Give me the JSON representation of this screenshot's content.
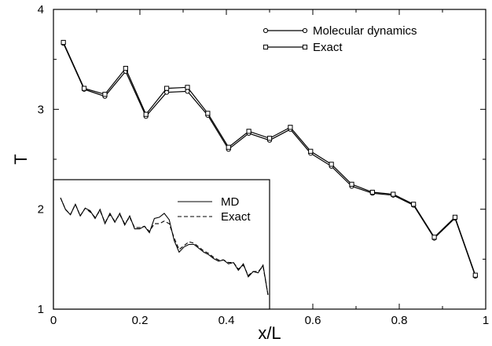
{
  "chart_data": [
    {
      "type": "line",
      "xlabel": "x/L",
      "ylabel": "T",
      "xlim": [
        0,
        1
      ],
      "ylim": [
        1,
        4
      ],
      "xticks": [
        "0",
        "0.2",
        "0.4",
        "0.6",
        "0.8",
        "1"
      ],
      "yticks": [
        "1",
        "2",
        "3",
        "4"
      ],
      "grid": false,
      "legend": "top-right",
      "series": [
        {
          "name": "Molecular dynamics",
          "marker": "circle",
          "x": [
            0.023,
            0.071,
            0.119,
            0.167,
            0.214,
            0.262,
            0.31,
            0.357,
            0.405,
            0.452,
            0.5,
            0.548,
            0.595,
            0.643,
            0.69,
            0.738,
            0.786,
            0.833,
            0.881,
            0.929,
            0.976
          ],
          "y": [
            3.66,
            3.2,
            3.13,
            3.38,
            2.93,
            3.17,
            3.18,
            2.94,
            2.6,
            2.76,
            2.69,
            2.8,
            2.56,
            2.43,
            2.23,
            2.16,
            2.14,
            2.04,
            1.71,
            1.91,
            1.33
          ]
        },
        {
          "name": "Exact",
          "marker": "square",
          "x": [
            0.023,
            0.071,
            0.119,
            0.167,
            0.214,
            0.262,
            0.31,
            0.357,
            0.405,
            0.452,
            0.5,
            0.548,
            0.595,
            0.643,
            0.69,
            0.738,
            0.786,
            0.833,
            0.881,
            0.929,
            0.976
          ],
          "y": [
            3.67,
            3.21,
            3.15,
            3.41,
            2.95,
            3.21,
            3.22,
            2.96,
            2.62,
            2.78,
            2.71,
            2.82,
            2.58,
            2.45,
            2.25,
            2.17,
            2.15,
            2.05,
            1.72,
            1.92,
            1.34
          ]
        }
      ]
    },
    {
      "type": "line",
      "legend": "top-right",
      "series": [
        {
          "name": "MD",
          "style": "solid",
          "values": [
            0.86,
            0.77,
            0.73,
            0.81,
            0.72,
            0.78,
            0.76,
            0.7,
            0.77,
            0.66,
            0.74,
            0.67,
            0.74,
            0.65,
            0.72,
            0.62,
            0.62,
            0.64,
            0.59,
            0.7,
            0.71,
            0.74,
            0.69,
            0.53,
            0.44,
            0.48,
            0.5,
            0.5,
            0.47,
            0.44,
            0.42,
            0.39,
            0.37,
            0.38,
            0.35,
            0.36,
            0.3,
            0.35,
            0.25,
            0.29,
            0.28,
            0.34,
            0.11
          ]
        },
        {
          "name": "Exact",
          "style": "dashed",
          "values": [
            0.86,
            0.77,
            0.73,
            0.81,
            0.72,
            0.78,
            0.75,
            0.71,
            0.76,
            0.67,
            0.73,
            0.68,
            0.73,
            0.66,
            0.71,
            0.63,
            0.63,
            0.64,
            0.6,
            0.66,
            0.66,
            0.68,
            0.66,
            0.55,
            0.46,
            0.49,
            0.52,
            0.51,
            0.48,
            0.45,
            0.43,
            0.4,
            0.38,
            0.38,
            0.36,
            0.36,
            0.31,
            0.34,
            0.26,
            0.29,
            0.29,
            0.33,
            0.11
          ]
        }
      ]
    }
  ]
}
